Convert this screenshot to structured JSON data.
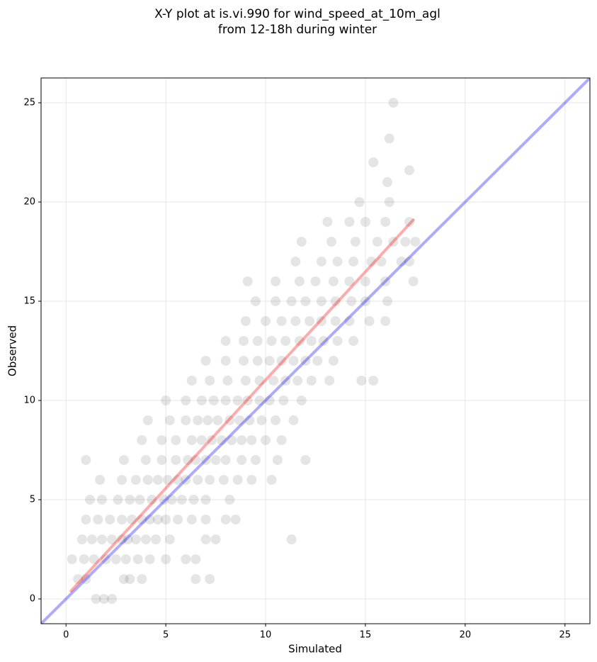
{
  "chart_data": {
    "type": "scatter",
    "title_lines": [
      "X-Y plot at is.vi.990 for wind_speed_at_10m_agl",
      "from 12-18h during winter"
    ],
    "x_label": "Simulated",
    "y_label": "Observed",
    "xlim": [
      -1.25,
      26.25
    ],
    "ylim": [
      -1.25,
      26.25
    ],
    "xticks": [
      0,
      5,
      10,
      15,
      20,
      25
    ],
    "yticks": [
      0,
      5,
      10,
      15,
      20,
      25
    ],
    "grid": true,
    "color": "#000000",
    "x": [
      1.5,
      1.9,
      2.3,
      0.6,
      1.0,
      2.9,
      3.2,
      3.8,
      6.5,
      7.2,
      0.3,
      0.9,
      1.4,
      2.0,
      2.5,
      3.0,
      3.6,
      4.2,
      5.0,
      6.0,
      6.5,
      0.8,
      1.3,
      1.8,
      2.3,
      2.8,
      3.1,
      3.5,
      4.0,
      4.5,
      5.2,
      7.0,
      7.5,
      11.3,
      1.0,
      1.6,
      2.2,
      2.8,
      3.3,
      3.8,
      4.2,
      4.6,
      5.0,
      5.6,
      6.3,
      7.0,
      8.0,
      8.5,
      1.2,
      1.8,
      2.6,
      3.2,
      3.7,
      4.3,
      4.9,
      5.3,
      5.8,
      6.4,
      7.0,
      8.2,
      1.7,
      2.8,
      3.5,
      4.1,
      4.6,
      5.1,
      5.6,
      6.0,
      6.6,
      7.2,
      7.9,
      8.6,
      9.3,
      10.3,
      1.0,
      2.9,
      4.0,
      4.8,
      5.5,
      6.1,
      6.5,
      7.0,
      7.5,
      8.0,
      8.8,
      9.5,
      10.6,
      12.0,
      3.8,
      4.8,
      5.5,
      6.3,
      6.8,
      7.3,
      7.8,
      8.3,
      8.8,
      9.3,
      10.0,
      10.8,
      4.1,
      5.2,
      6.0,
      6.6,
      7.1,
      7.6,
      8.2,
      8.7,
      9.2,
      9.8,
      10.5,
      11.4,
      5.0,
      6.0,
      6.8,
      7.4,
      8.0,
      8.6,
      9.1,
      9.7,
      10.2,
      10.9,
      11.8,
      6.3,
      7.2,
      8.1,
      9.0,
      9.7,
      10.4,
      11.0,
      11.6,
      12.3,
      13.2,
      14.8,
      15.4,
      7.0,
      8.0,
      8.9,
      9.6,
      10.2,
      10.8,
      11.4,
      12.0,
      12.6,
      13.4,
      8.0,
      8.9,
      9.6,
      10.3,
      11.0,
      11.7,
      12.3,
      12.9,
      13.6,
      14.4,
      9.0,
      10.0,
      10.8,
      11.5,
      12.2,
      12.8,
      13.5,
      14.2,
      15.2,
      16.0,
      9.5,
      10.5,
      11.3,
      12.0,
      12.8,
      13.5,
      14.3,
      15.0,
      16.1,
      9.1,
      10.5,
      11.7,
      12.5,
      13.4,
      14.2,
      15.0,
      16.0,
      17.4,
      11.5,
      12.8,
      13.6,
      14.4,
      15.3,
      15.8,
      16.8,
      17.2,
      11.8,
      13.3,
      14.5,
      15.6,
      16.4,
      17.0,
      17.5,
      13.1,
      14.2,
      15.0,
      16.0,
      17.2,
      14.7,
      16.2,
      16.1,
      15.4,
      16.2,
      16.4,
      17.2
    ],
    "y": [
      0,
      0,
      0,
      1,
      1,
      1,
      1,
      1,
      1,
      1,
      2,
      2,
      2,
      2,
      2,
      2,
      2,
      2,
      2,
      2,
      2,
      3,
      3,
      3,
      3,
      3,
      3,
      3,
      3,
      3,
      3,
      3,
      3,
      3,
      4,
      4,
      4,
      4,
      4,
      4,
      4,
      4,
      4,
      4,
      4,
      4,
      4,
      4,
      5,
      5,
      5,
      5,
      5,
      5,
      5,
      5,
      5,
      5,
      5,
      5,
      6,
      6,
      6,
      6,
      6,
      6,
      6,
      6,
      6,
      6,
      6,
      6,
      6,
      6,
      7,
      7,
      7,
      7,
      7,
      7,
      7,
      7,
      7,
      7,
      7,
      7,
      7,
      7,
      8,
      8,
      8,
      8,
      8,
      8,
      8,
      8,
      8,
      8,
      8,
      8,
      9,
      9,
      9,
      9,
      9,
      9,
      9,
      9,
      9,
      9,
      9,
      9,
      10,
      10,
      10,
      10,
      10,
      10,
      10,
      10,
      10,
      10,
      10,
      11,
      11,
      11,
      11,
      11,
      11,
      11,
      11,
      11,
      11,
      11,
      11,
      12,
      12,
      12,
      12,
      12,
      12,
      12,
      12,
      12,
      12,
      13,
      13,
      13,
      13,
      13,
      13,
      13,
      13,
      13,
      13,
      14,
      14,
      14,
      14,
      14,
      14,
      14,
      14,
      14,
      14,
      15,
      15,
      15,
      15,
      15,
      15,
      15,
      15,
      15,
      16,
      16,
      16,
      16,
      16,
      16,
      16,
      16,
      16,
      17,
      17,
      17,
      17,
      17,
      17,
      17,
      17,
      18,
      18,
      18,
      18,
      18,
      18,
      18,
      19,
      19,
      19,
      19,
      19,
      20,
      20,
      21,
      22,
      23.2,
      25,
      21.6
    ],
    "lines": [
      {
        "color": "#0000ff",
        "x": [
          -1.25,
          26.25
        ],
        "y": [
          -1.25,
          26.25
        ]
      },
      {
        "color": "#ff0000",
        "x": [
          0.25,
          17.4
        ],
        "y": [
          0.4,
          19.1
        ]
      }
    ]
  }
}
